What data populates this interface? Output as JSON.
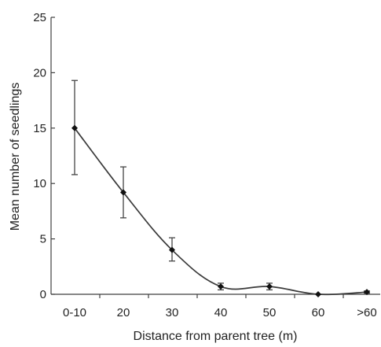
{
  "chart_data": {
    "type": "line",
    "title": "",
    "xlabel": "Distance from parent tree (m)",
    "ylabel": "Mean number of seedlings",
    "categories": [
      "0-10",
      "20",
      "30",
      "40",
      "50",
      "60",
      ">60"
    ],
    "ylim": [
      0,
      25
    ],
    "yticks": [
      "0",
      "5",
      "10",
      "15",
      "20",
      "25"
    ],
    "grid": false,
    "legend": "none",
    "series": [
      {
        "values": [
          15.0,
          9.2,
          4.0,
          0.7,
          0.7,
          0.0,
          0.2
        ],
        "error_low": [
          10.8,
          6.9,
          3.0,
          0.4,
          0.4,
          0.0,
          0.1
        ],
        "error_high": [
          19.3,
          11.5,
          5.1,
          1.0,
          1.0,
          0.0,
          0.3
        ]
      }
    ],
    "colors": {
      "line": "#3a3a3a",
      "marker": "#111111",
      "axis": "#3f3f3f"
    }
  }
}
